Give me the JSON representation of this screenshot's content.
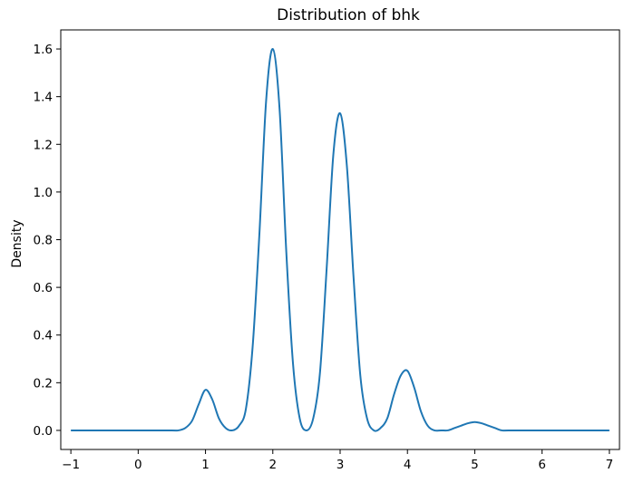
{
  "chart_data": {
    "type": "line",
    "title": "Distribution of bhk",
    "xlabel": "",
    "ylabel": "Density",
    "xlim": [
      -1.15,
      7.15
    ],
    "ylim": [
      -0.08,
      1.68
    ],
    "xticks": [
      -1,
      0,
      1,
      2,
      3,
      4,
      5,
      6,
      7
    ],
    "xtick_labels": [
      "−1",
      "0",
      "1",
      "2",
      "3",
      "4",
      "5",
      "6",
      "7"
    ],
    "yticks": [
      0.0,
      0.2,
      0.4,
      0.6,
      0.8,
      1.0,
      1.2,
      1.4,
      1.6
    ],
    "ytick_labels": [
      "0.0",
      "0.2",
      "0.4",
      "0.6",
      "0.8",
      "1.0",
      "1.2",
      "1.4",
      "1.6"
    ],
    "grid": false,
    "series": [
      {
        "color": "#1f77b4",
        "x": [
          -1.0,
          -0.5,
          0.0,
          0.5,
          0.6,
          0.7,
          0.8,
          0.9,
          1.0,
          1.1,
          1.2,
          1.3,
          1.4,
          1.5,
          1.6,
          1.7,
          1.8,
          1.9,
          2.0,
          2.1,
          2.2,
          2.3,
          2.4,
          2.5,
          2.6,
          2.7,
          2.8,
          2.9,
          3.0,
          3.1,
          3.2,
          3.3,
          3.4,
          3.5,
          3.6,
          3.7,
          3.8,
          3.9,
          4.0,
          4.1,
          4.2,
          4.3,
          4.4,
          4.5,
          4.6,
          4.7,
          4.8,
          4.9,
          5.0,
          5.1,
          5.2,
          5.3,
          5.4,
          5.5,
          6.0,
          6.5,
          7.0
        ],
        "y": [
          0.0,
          0.0,
          0.0,
          0.0,
          0.0,
          0.01,
          0.04,
          0.11,
          0.17,
          0.13,
          0.05,
          0.01,
          0.0,
          0.02,
          0.09,
          0.35,
          0.82,
          1.38,
          1.6,
          1.35,
          0.75,
          0.28,
          0.05,
          0.0,
          0.05,
          0.24,
          0.68,
          1.16,
          1.33,
          1.11,
          0.64,
          0.23,
          0.05,
          0.0,
          0.01,
          0.05,
          0.15,
          0.23,
          0.25,
          0.18,
          0.08,
          0.02,
          0.0,
          0.0,
          0.0,
          0.01,
          0.02,
          0.03,
          0.035,
          0.03,
          0.02,
          0.01,
          0.0,
          0.0,
          0.0,
          0.0,
          0.0
        ]
      }
    ]
  }
}
